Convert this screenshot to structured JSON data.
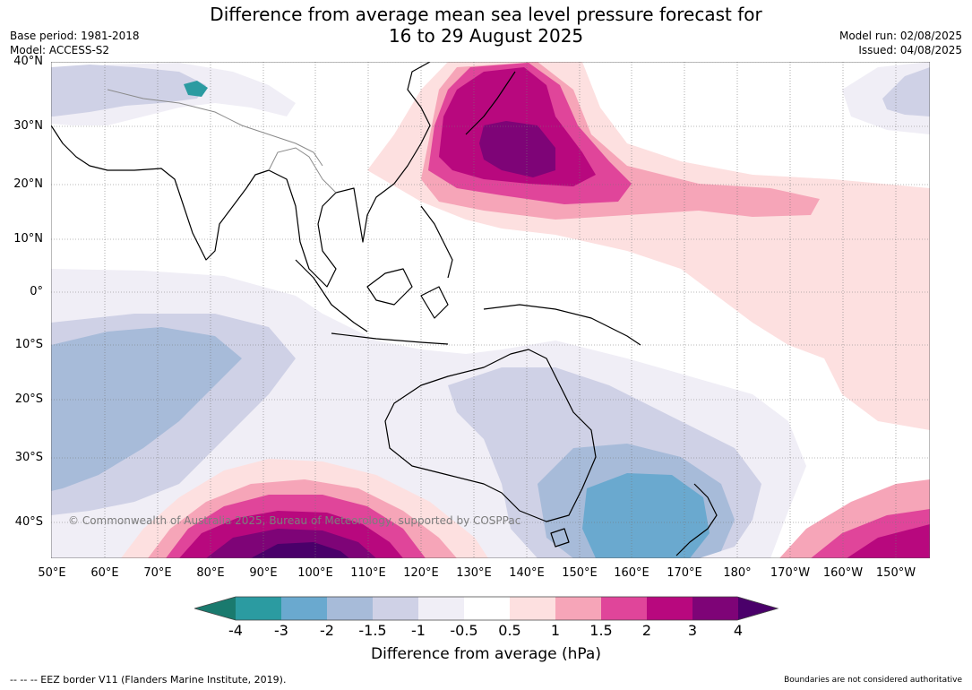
{
  "title": {
    "line1": "Difference from average mean sea level pressure forecast for",
    "line2": "16 to 29 August 2025"
  },
  "meta": {
    "base_period": "Base period: 1981-2018",
    "model": "Model: ACCESS-S2",
    "model_run": "Model run: 02/08/2025",
    "issued": "Issued: 04/08/2025"
  },
  "map": {
    "lat_labels": [
      "40°N",
      "30°N",
      "20°N",
      "10°N",
      "0°",
      "10°S",
      "20°S",
      "30°S",
      "40°S"
    ],
    "lon_labels": [
      "50°E",
      "60°E",
      "70°E",
      "80°E",
      "90°E",
      "100°E",
      "110°E",
      "120°E",
      "130°E",
      "140°E",
      "150°E",
      "160°E",
      "170°E",
      "180°",
      "170°W",
      "160°W",
      "150°W"
    ],
    "copyright": "© Commonwealth of Australia 2025, Bureau of Meteorology, supported by COSPPac"
  },
  "colorbar": {
    "ticks": [
      "-4",
      "-3",
      "-2",
      "-1.5",
      "-1",
      "-0.5",
      "0.5",
      "1",
      "1.5",
      "2",
      "3",
      "4"
    ],
    "colors": [
      "#1a7a6e",
      "#2b9ba1",
      "#6aa9cf",
      "#a7bbd9",
      "#cfd1e6",
      "#f0eef6",
      "#ffffff",
      "#fde0e0",
      "#f6a5b8",
      "#e0459a",
      "#b8087e",
      "#7e0477",
      "#4a006a"
    ],
    "label": "Difference from average (hPa)"
  },
  "footer": {
    "eez": "--  --  -- EEZ border V11 (Flanders Marine Institute, 2019).",
    "boundaries": "Boundaries are not considered authoritative"
  }
}
